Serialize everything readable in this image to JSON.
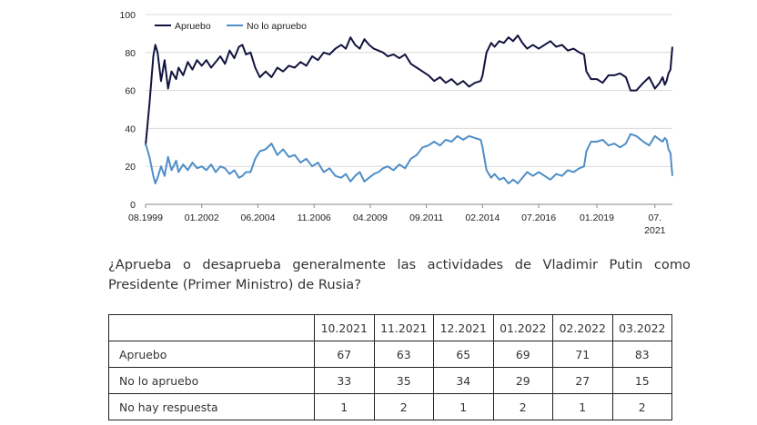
{
  "chart_data": {
    "type": "line",
    "title": "",
    "xlabel": "",
    "ylabel": "",
    "ylim": [
      0,
      100
    ],
    "yticks": [
      0,
      20,
      40,
      60,
      80,
      100
    ],
    "x_tick_labels": [
      "08.1999",
      "01.2002",
      "06.2004",
      "11.2006",
      "04.2009",
      "09.2011",
      "02.2014",
      "07.2016",
      "01.2019",
      "07.\n2021"
    ],
    "x_tick_dates": [
      1999.583,
      2002.0,
      2004.417,
      2006.833,
      2009.25,
      2011.667,
      2014.083,
      2016.5,
      2019.0,
      2021.5
    ],
    "xrange": [
      1999.583,
      2022.25
    ],
    "legend": "top-left",
    "series": [
      {
        "name": "Apruebo",
        "color": "#12133f",
        "points": [
          [
            1999.583,
            31
          ],
          [
            1999.75,
            53
          ],
          [
            1999.917,
            78
          ],
          [
            2000.0,
            84
          ],
          [
            2000.1,
            80
          ],
          [
            2000.25,
            65
          ],
          [
            2000.4,
            76
          ],
          [
            2000.55,
            61
          ],
          [
            2000.7,
            70
          ],
          [
            2000.9,
            66
          ],
          [
            2001.0,
            72
          ],
          [
            2001.2,
            68
          ],
          [
            2001.4,
            75
          ],
          [
            2001.6,
            71
          ],
          [
            2001.8,
            76
          ],
          [
            2002.0,
            73
          ],
          [
            2002.2,
            76
          ],
          [
            2002.4,
            72
          ],
          [
            2002.6,
            75
          ],
          [
            2002.8,
            78
          ],
          [
            2003.0,
            74
          ],
          [
            2003.2,
            81
          ],
          [
            2003.4,
            77
          ],
          [
            2003.6,
            83
          ],
          [
            2003.75,
            84
          ],
          [
            2003.9,
            79
          ],
          [
            2004.1,
            80
          ],
          [
            2004.3,
            72
          ],
          [
            2004.5,
            67
          ],
          [
            2004.75,
            70
          ],
          [
            2005.0,
            67
          ],
          [
            2005.25,
            72
          ],
          [
            2005.5,
            70
          ],
          [
            2005.75,
            73
          ],
          [
            2006.0,
            72
          ],
          [
            2006.25,
            75
          ],
          [
            2006.5,
            73
          ],
          [
            2006.75,
            78
          ],
          [
            2007.0,
            76
          ],
          [
            2007.25,
            80
          ],
          [
            2007.5,
            79
          ],
          [
            2007.75,
            82
          ],
          [
            2008.0,
            84
          ],
          [
            2008.2,
            82
          ],
          [
            2008.4,
            88
          ],
          [
            2008.6,
            84
          ],
          [
            2008.8,
            82
          ],
          [
            2009.0,
            87
          ],
          [
            2009.2,
            84
          ],
          [
            2009.4,
            82
          ],
          [
            2009.6,
            81
          ],
          [
            2009.8,
            80
          ],
          [
            2010.0,
            78
          ],
          [
            2010.25,
            79
          ],
          [
            2010.5,
            77
          ],
          [
            2010.75,
            79
          ],
          [
            2011.0,
            74
          ],
          [
            2011.25,
            72
          ],
          [
            2011.5,
            70
          ],
          [
            2011.75,
            68
          ],
          [
            2012.0,
            65
          ],
          [
            2012.25,
            67
          ],
          [
            2012.5,
            64
          ],
          [
            2012.75,
            66
          ],
          [
            2013.0,
            63
          ],
          [
            2013.25,
            65
          ],
          [
            2013.5,
            62
          ],
          [
            2013.75,
            64
          ],
          [
            2014.0,
            65
          ],
          [
            2014.083,
            68
          ],
          [
            2014.25,
            80
          ],
          [
            2014.45,
            85
          ],
          [
            2014.6,
            83
          ],
          [
            2014.8,
            86
          ],
          [
            2015.0,
            85
          ],
          [
            2015.2,
            88
          ],
          [
            2015.4,
            86
          ],
          [
            2015.6,
            89
          ],
          [
            2015.8,
            85
          ],
          [
            2016.0,
            82
          ],
          [
            2016.25,
            84
          ],
          [
            2016.5,
            82
          ],
          [
            2016.75,
            84
          ],
          [
            2017.0,
            86
          ],
          [
            2017.25,
            83
          ],
          [
            2017.5,
            84
          ],
          [
            2017.75,
            81
          ],
          [
            2018.0,
            82
          ],
          [
            2018.25,
            80
          ],
          [
            2018.45,
            79
          ],
          [
            2018.55,
            70
          ],
          [
            2018.75,
            66
          ],
          [
            2019.0,
            66
          ],
          [
            2019.25,
            64
          ],
          [
            2019.5,
            68
          ],
          [
            2019.75,
            68
          ],
          [
            2020.0,
            69
          ],
          [
            2020.25,
            67
          ],
          [
            2020.45,
            60
          ],
          [
            2020.7,
            60
          ],
          [
            2021.0,
            64
          ],
          [
            2021.25,
            67
          ],
          [
            2021.5,
            61
          ],
          [
            2021.7,
            64
          ],
          [
            2021.83,
            67
          ],
          [
            2021.92,
            63
          ],
          [
            2022.0,
            65
          ],
          [
            2022.083,
            69
          ],
          [
            2022.167,
            71
          ],
          [
            2022.25,
            83
          ]
        ]
      },
      {
        "name": "No lo apruebo",
        "color": "#4f8ec7",
        "points": [
          [
            1999.583,
            32
          ],
          [
            1999.75,
            25
          ],
          [
            1999.917,
            15
          ],
          [
            2000.0,
            11
          ],
          [
            2000.1,
            14
          ],
          [
            2000.25,
            20
          ],
          [
            2000.4,
            15
          ],
          [
            2000.55,
            25
          ],
          [
            2000.7,
            18
          ],
          [
            2000.9,
            23
          ],
          [
            2001.0,
            17
          ],
          [
            2001.2,
            21
          ],
          [
            2001.4,
            18
          ],
          [
            2001.6,
            22
          ],
          [
            2001.8,
            19
          ],
          [
            2002.0,
            20
          ],
          [
            2002.2,
            18
          ],
          [
            2002.4,
            21
          ],
          [
            2002.6,
            17
          ],
          [
            2002.8,
            20
          ],
          [
            2003.0,
            19
          ],
          [
            2003.2,
            16
          ],
          [
            2003.4,
            18
          ],
          [
            2003.6,
            14
          ],
          [
            2003.75,
            15
          ],
          [
            2003.9,
            17
          ],
          [
            2004.1,
            17
          ],
          [
            2004.3,
            24
          ],
          [
            2004.5,
            28
          ],
          [
            2004.75,
            29
          ],
          [
            2005.0,
            32
          ],
          [
            2005.25,
            26
          ],
          [
            2005.5,
            29
          ],
          [
            2005.75,
            25
          ],
          [
            2006.0,
            26
          ],
          [
            2006.25,
            22
          ],
          [
            2006.5,
            24
          ],
          [
            2006.75,
            20
          ],
          [
            2007.0,
            22
          ],
          [
            2007.25,
            17
          ],
          [
            2007.5,
            19
          ],
          [
            2007.75,
            15
          ],
          [
            2008.0,
            14
          ],
          [
            2008.2,
            16
          ],
          [
            2008.4,
            12
          ],
          [
            2008.6,
            15
          ],
          [
            2008.8,
            17
          ],
          [
            2009.0,
            12
          ],
          [
            2009.2,
            14
          ],
          [
            2009.4,
            16
          ],
          [
            2009.6,
            17
          ],
          [
            2009.8,
            19
          ],
          [
            2010.0,
            20
          ],
          [
            2010.25,
            18
          ],
          [
            2010.5,
            21
          ],
          [
            2010.75,
            19
          ],
          [
            2011.0,
            24
          ],
          [
            2011.25,
            26
          ],
          [
            2011.5,
            30
          ],
          [
            2011.75,
            31
          ],
          [
            2012.0,
            33
          ],
          [
            2012.25,
            31
          ],
          [
            2012.5,
            34
          ],
          [
            2012.75,
            33
          ],
          [
            2013.0,
            36
          ],
          [
            2013.25,
            34
          ],
          [
            2013.5,
            36
          ],
          [
            2013.75,
            35
          ],
          [
            2014.0,
            34
          ],
          [
            2014.083,
            30
          ],
          [
            2014.25,
            18
          ],
          [
            2014.45,
            14
          ],
          [
            2014.6,
            16
          ],
          [
            2014.8,
            13
          ],
          [
            2015.0,
            14
          ],
          [
            2015.2,
            11
          ],
          [
            2015.4,
            13
          ],
          [
            2015.6,
            11
          ],
          [
            2015.8,
            14
          ],
          [
            2016.0,
            17
          ],
          [
            2016.25,
            15
          ],
          [
            2016.5,
            17
          ],
          [
            2016.75,
            15
          ],
          [
            2017.0,
            13
          ],
          [
            2017.25,
            16
          ],
          [
            2017.5,
            15
          ],
          [
            2017.75,
            18
          ],
          [
            2018.0,
            17
          ],
          [
            2018.25,
            19
          ],
          [
            2018.45,
            20
          ],
          [
            2018.55,
            28
          ],
          [
            2018.75,
            33
          ],
          [
            2019.0,
            33
          ],
          [
            2019.25,
            34
          ],
          [
            2019.5,
            31
          ],
          [
            2019.75,
            32
          ],
          [
            2020.0,
            30
          ],
          [
            2020.25,
            32
          ],
          [
            2020.45,
            37
          ],
          [
            2020.7,
            36
          ],
          [
            2021.0,
            33
          ],
          [
            2021.25,
            31
          ],
          [
            2021.5,
            36
          ],
          [
            2021.7,
            34
          ],
          [
            2021.83,
            33
          ],
          [
            2021.92,
            35
          ],
          [
            2022.0,
            34
          ],
          [
            2022.083,
            29
          ],
          [
            2022.167,
            27
          ],
          [
            2022.25,
            15
          ]
        ]
      }
    ]
  },
  "question": "¿Aprueba o desaprueba generalmente las actividades de Vladimir Putin como Presidente (Primer Ministro) de Rusia?",
  "table": {
    "months": [
      "10.2021",
      "11.2021",
      "12.2021",
      "01.2022",
      "02.2022",
      "03.2022"
    ],
    "rows": [
      {
        "label": "Apruebo",
        "values": [
          "67",
          "63",
          "65",
          "69",
          "71",
          "83"
        ]
      },
      {
        "label": "No lo apruebo",
        "values": [
          "33",
          "35",
          "34",
          "29",
          "27",
          "15"
        ]
      },
      {
        "label": "No hay respuesta",
        "values": [
          "1",
          "2",
          "1",
          "2",
          "1",
          "2"
        ]
      }
    ]
  }
}
